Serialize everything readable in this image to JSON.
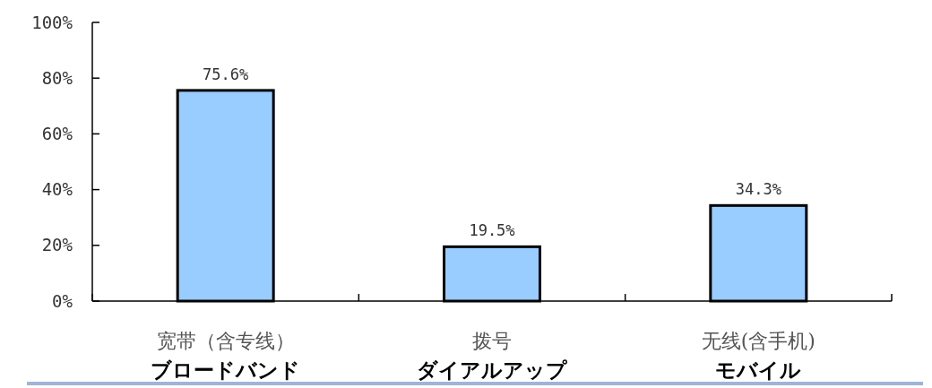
{
  "chart_data": {
    "type": "bar",
    "categories": [
      "宽带（含专线）",
      "拨号",
      "无线(含手机)"
    ],
    "values": [
      75.6,
      19.5,
      34.3
    ],
    "color": "#99ccff",
    "value_labels": [
      "75.6%",
      "19.5%",
      "34.3%"
    ],
    "ylim": [
      0,
      100
    ],
    "yticks": [
      {
        "value": 0,
        "label": "0%"
      },
      {
        "value": 20,
        "label": "20%"
      },
      {
        "value": 40,
        "label": "40%"
      },
      {
        "value": 60,
        "label": "60%"
      },
      {
        "value": 80,
        "label": "80%"
      },
      {
        "value": 100,
        "label": "100%"
      }
    ],
    "annotations": [
      "ブロードバンド",
      "ダイアルアップ",
      "モバイル"
    ]
  }
}
